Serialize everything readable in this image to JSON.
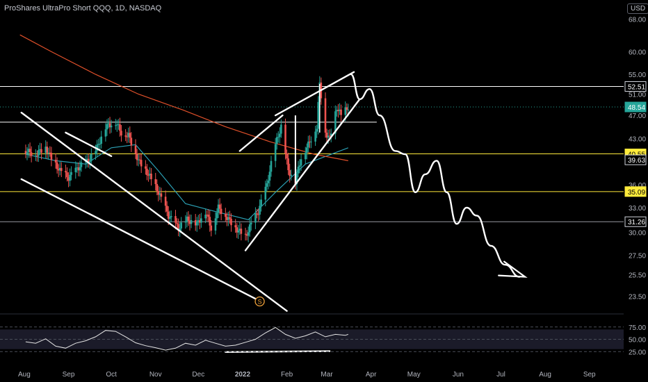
{
  "header": {
    "title": "ProShares UltraPro Short QQQ, 1D, NASDAQ",
    "currency": "USD"
  },
  "colors": {
    "background": "#000000",
    "axis_text": "#b2b5be",
    "bull": "#26a69a",
    "bear": "#ef5350",
    "ma_fast": "#2b9fb3",
    "ma_slow": "#e0502a",
    "drawing": "#ffffff",
    "level_yellow": "#ffeb3b",
    "level_gray": "#9598a1",
    "rsi_line": "#e6e6e6",
    "rsi_band": "#1e1e2e"
  },
  "chart_data": {
    "type": "candlestick",
    "symbol": "ProShares UltraPro Short QQQ",
    "interval": "1D",
    "exchange": "NASDAQ",
    "y_axis": {
      "scale": "log",
      "ticks": [
        23.5,
        25.5,
        27.5,
        30.0,
        33.0,
        36.0,
        39.63,
        43.0,
        47.0,
        51.0,
        55.0,
        60.0,
        68.0
      ],
      "tick_labels": [
        "23.50",
        "25.50",
        "27.50",
        "30.00",
        "33.00",
        "36.00",
        "39.63",
        "43.00",
        "47.00",
        "51.00",
        "55.00",
        "60.00",
        "68.00"
      ]
    },
    "x_axis": {
      "labels": [
        "Aug",
        "Sep",
        "Oct",
        "Nov",
        "Dec",
        "2022",
        "Feb",
        "Mar",
        "Apr",
        "May",
        "Jun",
        "Jul",
        "Aug",
        "Sep"
      ],
      "label_dates": [
        "2021-08-01",
        "2021-09-01",
        "2021-10-01",
        "2021-11-01",
        "2021-12-01",
        "2022-01-01",
        "2022-02-01",
        "2022-03-01",
        "2022-04-01",
        "2022-05-01",
        "2022-06-01",
        "2022-07-01",
        "2022-08-01",
        "2022-09-01"
      ]
    },
    "price_labels": [
      {
        "value": 52.51,
        "text": "52.51",
        "style": "outline"
      },
      {
        "value": 48.54,
        "text": "48.54",
        "style": "last"
      },
      {
        "value": 40.55,
        "text": "40.55",
        "style": "yellow"
      },
      {
        "value": 39.63,
        "text": "39.63",
        "style": "outline"
      },
      {
        "value": 35.09,
        "text": "35.09",
        "style": "yellow"
      },
      {
        "value": 31.26,
        "text": "31.26",
        "style": "outline"
      }
    ],
    "horizontal_levels": [
      {
        "value": 52.51,
        "color": "white",
        "extend": "full"
      },
      {
        "value": 45.8,
        "color": "white",
        "extend": "partial"
      },
      {
        "value": 40.55,
        "color": "yellow",
        "extend": "full"
      },
      {
        "value": 35.09,
        "color": "yellow",
        "extend": "full"
      },
      {
        "value": 31.26,
        "color": "gray",
        "extend": "full"
      }
    ],
    "last_price": 48.54,
    "price_path": [
      [
        "2021-08-02",
        41.0
      ],
      [
        "2021-08-09",
        40.5
      ],
      [
        "2021-08-16",
        41.6
      ],
      [
        "2021-08-20",
        39.8
      ],
      [
        "2021-08-26",
        38.0
      ],
      [
        "2021-09-01",
        37.0
      ],
      [
        "2021-09-08",
        38.5
      ],
      [
        "2021-09-15",
        39.5
      ],
      [
        "2021-09-21",
        41.5
      ],
      [
        "2021-09-27",
        45.0
      ],
      [
        "2021-10-04",
        45.8
      ],
      [
        "2021-10-08",
        44.0
      ],
      [
        "2021-10-13",
        43.5
      ],
      [
        "2021-10-20",
        39.5
      ],
      [
        "2021-10-27",
        37.5
      ],
      [
        "2021-11-03",
        35.0
      ],
      [
        "2021-11-10",
        32.0
      ],
      [
        "2021-11-17",
        30.5
      ],
      [
        "2021-11-23",
        31.5
      ],
      [
        "2021-11-30",
        31.0
      ],
      [
        "2021-12-06",
        32.5
      ],
      [
        "2021-12-10",
        30.5
      ],
      [
        "2021-12-15",
        33.0
      ],
      [
        "2021-12-20",
        32.0
      ],
      [
        "2021-12-27",
        30.5
      ],
      [
        "2022-01-03",
        29.5
      ],
      [
        "2022-01-07",
        31.0
      ],
      [
        "2022-01-12",
        32.5
      ],
      [
        "2022-01-18",
        36.0
      ],
      [
        "2022-01-24",
        42.0
      ],
      [
        "2022-01-28",
        45.0
      ],
      [
        "2022-02-02",
        38.0
      ],
      [
        "2022-02-07",
        36.5
      ],
      [
        "2022-02-11",
        40.0
      ],
      [
        "2022-02-16",
        42.0
      ],
      [
        "2022-02-22",
        45.0
      ],
      [
        "2022-02-24",
        53.0
      ],
      [
        "2022-02-28",
        44.0
      ],
      [
        "2022-03-03",
        43.0
      ],
      [
        "2022-03-08",
        48.5
      ],
      [
        "2022-03-11",
        47.0
      ],
      [
        "2022-03-16",
        48.54
      ]
    ],
    "projection_path": [
      [
        "2022-03-18",
        55.0
      ],
      [
        "2022-03-24",
        50.0
      ],
      [
        "2022-03-31",
        52.0
      ],
      [
        "2022-04-07",
        47.0
      ],
      [
        "2022-04-18",
        41.0
      ],
      [
        "2022-04-25",
        40.5
      ],
      [
        "2022-05-02",
        35.0
      ],
      [
        "2022-05-09",
        37.5
      ],
      [
        "2022-05-17",
        39.5
      ],
      [
        "2022-05-24",
        35.0
      ],
      [
        "2022-05-31",
        31.0
      ],
      [
        "2022-06-07",
        33.0
      ],
      [
        "2022-06-14",
        32.0
      ],
      [
        "2022-06-24",
        28.5
      ],
      [
        "2022-07-04",
        26.5
      ],
      [
        "2022-07-14",
        25.3
      ]
    ],
    "indicator": {
      "name": "RSI",
      "y_ticks": [
        25.0,
        50.0,
        75.0
      ],
      "tick_labels": [
        "25.00",
        "50.00",
        "75.00"
      ],
      "band": [
        30,
        70
      ],
      "values": [
        [
          "2021-08-02",
          45
        ],
        [
          "2021-08-09",
          42
        ],
        [
          "2021-08-16",
          51
        ],
        [
          "2021-08-23",
          36
        ],
        [
          "2021-08-30",
          32
        ],
        [
          "2021-09-06",
          42
        ],
        [
          "2021-09-13",
          47
        ],
        [
          "2021-09-20",
          55
        ],
        [
          "2021-09-27",
          68
        ],
        [
          "2021-10-04",
          66
        ],
        [
          "2021-10-11",
          55
        ],
        [
          "2021-10-18",
          43
        ],
        [
          "2021-10-25",
          37
        ],
        [
          "2021-11-01",
          33
        ],
        [
          "2021-11-08",
          28
        ],
        [
          "2021-11-15",
          32
        ],
        [
          "2021-11-22",
          42
        ],
        [
          "2021-11-29",
          38
        ],
        [
          "2021-12-06",
          48
        ],
        [
          "2021-12-13",
          42
        ],
        [
          "2021-12-20",
          36
        ],
        [
          "2021-12-27",
          38
        ],
        [
          "2022-01-03",
          44
        ],
        [
          "2022-01-10",
          50
        ],
        [
          "2022-01-17",
          63
        ],
        [
          "2022-01-24",
          74
        ],
        [
          "2022-01-31",
          60
        ],
        [
          "2022-02-07",
          52
        ],
        [
          "2022-02-14",
          57
        ],
        [
          "2022-02-21",
          65
        ],
        [
          "2022-02-28",
          55
        ],
        [
          "2022-03-07",
          60
        ],
        [
          "2022-03-14",
          58
        ],
        [
          "2022-03-16",
          60
        ]
      ]
    },
    "moving_averages": [
      {
        "color": "ma_fast",
        "path": [
          [
            "2021-08-02",
            40.5
          ],
          [
            "2021-08-23",
            39.5
          ],
          [
            "2021-09-13",
            39.0
          ],
          [
            "2021-10-01",
            41.5
          ],
          [
            "2021-10-18",
            42.0
          ],
          [
            "2021-11-03",
            38.0
          ],
          [
            "2021-11-22",
            33.5
          ],
          [
            "2021-12-13",
            32.5
          ],
          [
            "2022-01-05",
            31.5
          ],
          [
            "2022-01-24",
            35.0
          ],
          [
            "2022-02-14",
            39.0
          ],
          [
            "2022-03-16",
            41.5
          ]
        ]
      },
      {
        "color": "ma_slow",
        "path": [
          [
            "2021-07-29",
            64.0
          ],
          [
            "2021-08-20",
            60.0
          ],
          [
            "2021-09-20",
            55.0
          ],
          [
            "2021-10-20",
            51.0
          ],
          [
            "2021-11-20",
            48.0
          ],
          [
            "2021-12-20",
            45.0
          ],
          [
            "2022-01-20",
            42.5
          ],
          [
            "2022-02-20",
            40.5
          ],
          [
            "2022-03-16",
            39.5
          ]
        ]
      }
    ],
    "annotation_badge": {
      "text": "S",
      "date": "2022-01-13"
    },
    "drawings": [
      {
        "kind": "trendline",
        "from": [
          "2021-07-30",
          47.5
        ],
        "to": [
          "2022-02-01",
          22.2
        ]
      },
      {
        "kind": "trendline",
        "from": [
          "2021-07-30",
          36.8
        ],
        "to": [
          "2022-01-11",
          23.2
        ]
      },
      {
        "kind": "trendline",
        "from": [
          "2021-08-30",
          44.0
        ],
        "to": [
          "2021-10-01",
          40.2
        ]
      },
      {
        "kind": "trendline",
        "from": [
          "2021-12-30",
          41.0
        ],
        "to": [
          "2022-01-29",
          47.0
        ]
      },
      {
        "kind": "trendline",
        "from": [
          "2022-01-03",
          28.0
        ],
        "to": [
          "2022-03-24",
          50.0
        ]
      },
      {
        "kind": "trendline",
        "from": [
          "2022-01-24",
          47.0
        ],
        "to": [
          "2022-03-20",
          55.5
        ]
      },
      {
        "kind": "trendline",
        "from": [
          "2021-12-20",
          24.2
        ],
        "to": [
          "2022-03-03",
          26.0
        ],
        "pane": "indicator"
      }
    ]
  }
}
